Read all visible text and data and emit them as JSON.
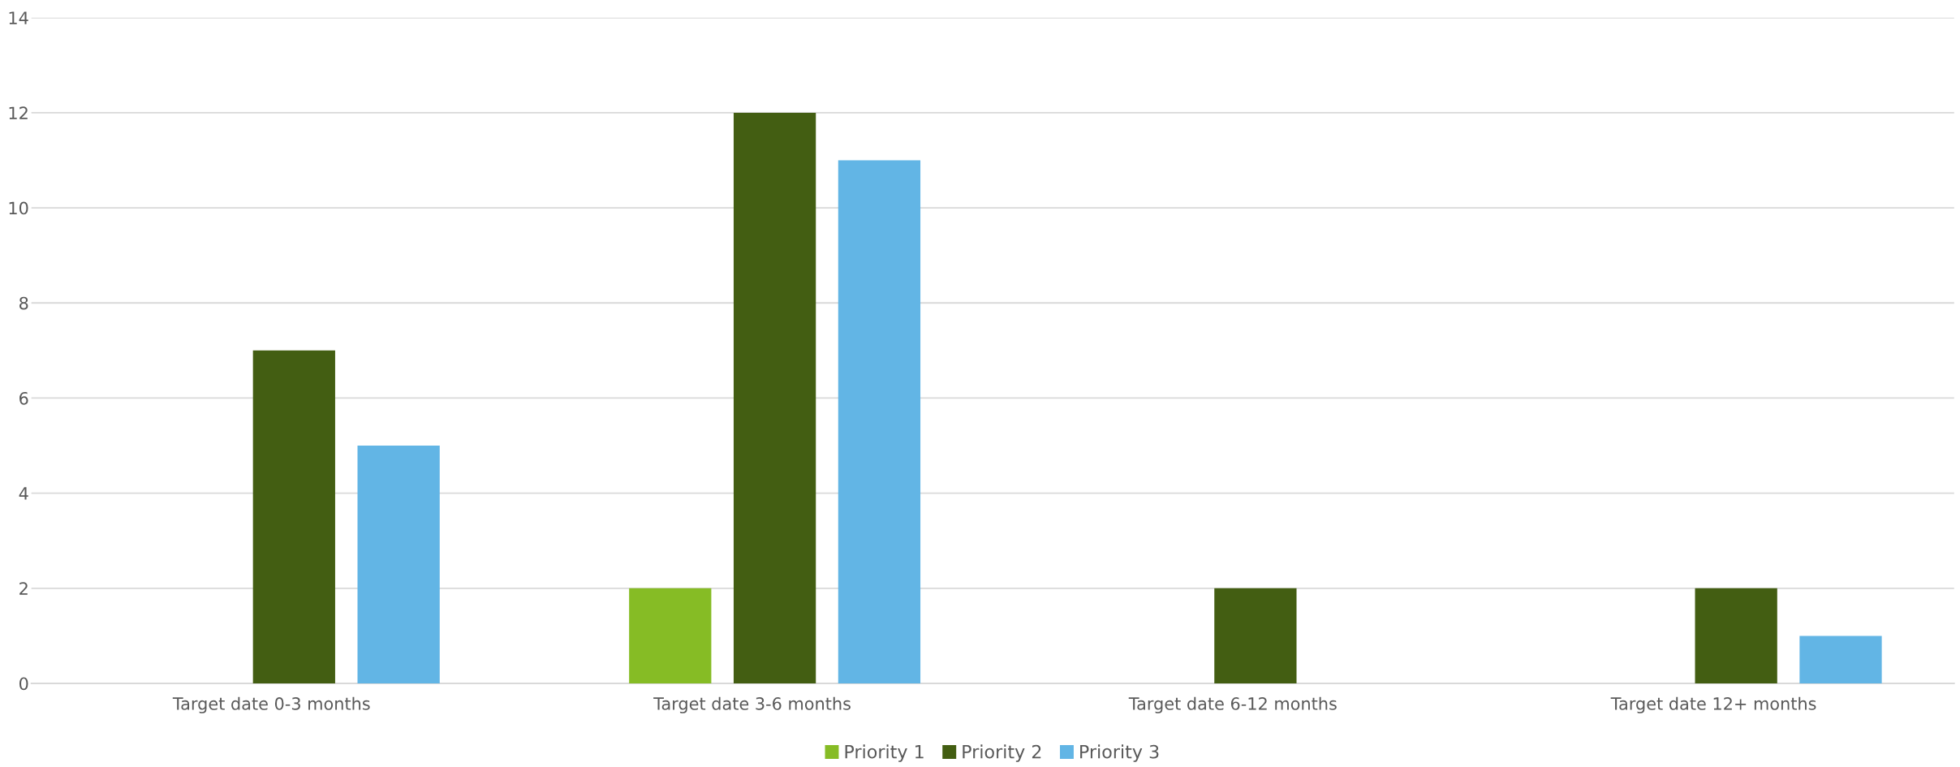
{
  "chart_data": {
    "type": "bar",
    "categories": [
      "Target date 0-3 months",
      "Target date 3-6 months",
      "Target date 6-12 months",
      "Target date 12+ months"
    ],
    "series": [
      {
        "name": "Priority 1",
        "color": "#86bc25",
        "values": [
          0,
          2,
          0,
          0
        ]
      },
      {
        "name": "Priority 2",
        "color": "#435e12",
        "values": [
          7,
          12,
          2,
          2
        ]
      },
      {
        "name": "Priority 3",
        "color": "#62b5e5",
        "values": [
          5,
          11,
          0,
          1
        ]
      }
    ],
    "ylim": [
      0,
      14
    ],
    "yticks": [
      0,
      2,
      4,
      6,
      8,
      10,
      12,
      14
    ],
    "grid": "y",
    "legend": "bottom"
  }
}
